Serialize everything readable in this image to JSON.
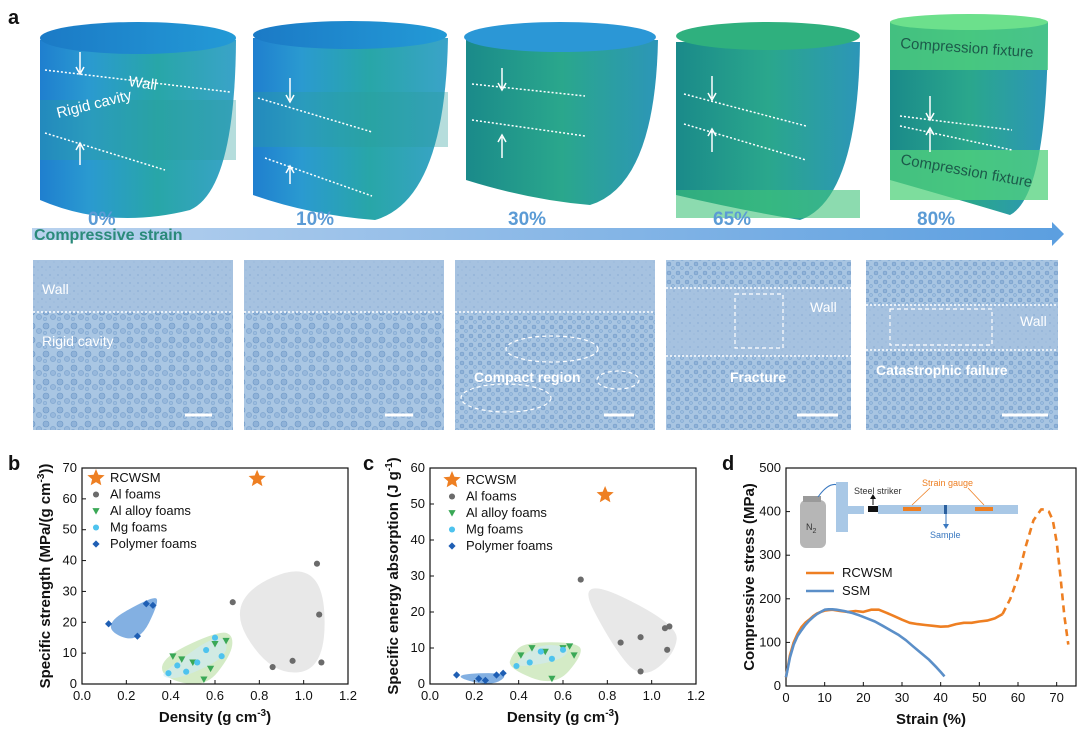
{
  "panel_a": {
    "label": "a",
    "strains": [
      "0%",
      "10%",
      "30%",
      "65%",
      "80%"
    ],
    "arrow_label": "Compressive strain",
    "cyl_wall": "Wall",
    "cyl_cavity": "Rigid cavity",
    "cyl_fixture_top": "Compression fixture",
    "cyl_fixture_bottom": "Compression fixture",
    "mic_wall": "Wall",
    "mic_cavity": "Rigid cavity",
    "mic_compact": "Compact region",
    "mic_fracture": "Fracture",
    "mic_wall_4": "Wall",
    "mic_catastrophic": "Catastrophic failure",
    "mic_wall_5": "Wall"
  },
  "chart_data": [
    {
      "panel": "b",
      "type": "scatter",
      "xlabel": "Density (g cm-3)",
      "ylabel": "Specific strength (MPa/(g cm-3))",
      "xlim": [
        0.0,
        1.2
      ],
      "ylim": [
        0,
        70
      ],
      "xticks": [
        "0.0",
        "0.2",
        "0.4",
        "0.6",
        "0.8",
        "1.0",
        "1.2"
      ],
      "yticks": [
        "0",
        "10",
        "20",
        "30",
        "40",
        "50",
        "60",
        "70"
      ],
      "legend": [
        "RCWSM",
        "Al foams",
        "Al alloy foams",
        "Mg foams",
        "Polymer foams"
      ],
      "series": [
        {
          "name": "RCWSM",
          "color": "#ee7f22",
          "marker": "star",
          "points": [
            [
              0.79,
              66.5
            ]
          ]
        },
        {
          "name": "Al foams",
          "color": "#6b6b6b",
          "marker": "circle",
          "points": [
            [
              0.68,
              26.5
            ],
            [
              0.86,
              5.5
            ],
            [
              0.95,
              7.5
            ],
            [
              1.06,
              39
            ],
            [
              1.07,
              22.5
            ],
            [
              1.08,
              7
            ]
          ]
        },
        {
          "name": "Al alloy foams",
          "color": "#3aa856",
          "marker": "triangle-down",
          "points": [
            [
              0.41,
              9
            ],
            [
              0.45,
              8
            ],
            [
              0.5,
              7
            ],
            [
              0.55,
              1.5
            ],
            [
              0.58,
              5
            ],
            [
              0.6,
              13
            ],
            [
              0.65,
              14
            ]
          ]
        },
        {
          "name": "Mg foams",
          "color": "#4ec3ee",
          "marker": "circle",
          "points": [
            [
              0.39,
              3.5
            ],
            [
              0.43,
              6
            ],
            [
              0.47,
              4
            ],
            [
              0.52,
              7
            ],
            [
              0.56,
              11
            ],
            [
              0.6,
              15
            ],
            [
              0.63,
              9
            ]
          ]
        },
        {
          "name": "Polymer foams",
          "color": "#1f5fb4",
          "marker": "diamond",
          "points": [
            [
              0.12,
              19.5
            ],
            [
              0.25,
              15.5
            ],
            [
              0.29,
              26
            ],
            [
              0.32,
              25.5
            ]
          ]
        }
      ]
    },
    {
      "panel": "c",
      "type": "scatter",
      "xlabel": "Density (g cm-3)",
      "ylabel": "Specific energy absorption (J g-1)",
      "xlim": [
        0.0,
        1.2
      ],
      "ylim": [
        0,
        60
      ],
      "xticks": [
        "0.0",
        "0.2",
        "0.4",
        "0.6",
        "0.8",
        "1.0",
        "1.2"
      ],
      "yticks": [
        "0",
        "10",
        "20",
        "30",
        "40",
        "50",
        "60"
      ],
      "legend": [
        "RCWSM",
        "Al foams",
        "Al alloy foams",
        "Mg foams",
        "Polymer foams"
      ],
      "series": [
        {
          "name": "RCWSM",
          "color": "#ee7f22",
          "marker": "star",
          "points": [
            [
              0.79,
              52.5
            ]
          ]
        },
        {
          "name": "Al foams",
          "color": "#6b6b6b",
          "marker": "circle",
          "points": [
            [
              0.68,
              29
            ],
            [
              0.86,
              11.5
            ],
            [
              0.95,
              13
            ],
            [
              0.95,
              3.5
            ],
            [
              1.06,
              15.5
            ],
            [
              1.08,
              16
            ],
            [
              1.07,
              9.5
            ]
          ]
        },
        {
          "name": "Al alloy foams",
          "color": "#3aa856",
          "marker": "triangle-down",
          "points": [
            [
              0.41,
              8
            ],
            [
              0.46,
              10
            ],
            [
              0.52,
              9
            ],
            [
              0.55,
              1.5
            ],
            [
              0.6,
              10
            ],
            [
              0.63,
              10.5
            ],
            [
              0.65,
              8
            ]
          ]
        },
        {
          "name": "Mg foams",
          "color": "#4ec3ee",
          "marker": "circle",
          "points": [
            [
              0.39,
              5
            ],
            [
              0.45,
              6
            ],
            [
              0.5,
              9
            ],
            [
              0.55,
              7
            ],
            [
              0.6,
              9.5
            ]
          ]
        },
        {
          "name": "Polymer foams",
          "color": "#1f5fb4",
          "marker": "diamond",
          "points": [
            [
              0.12,
              2.5
            ],
            [
              0.22,
              1.5
            ],
            [
              0.25,
              1
            ],
            [
              0.3,
              2.5
            ],
            [
              0.33,
              3
            ]
          ]
        }
      ]
    },
    {
      "panel": "d",
      "type": "line",
      "xlabel": "Strain (%)",
      "ylabel": "Compressive stress (MPa)",
      "xlim": [
        0,
        75
      ],
      "ylim": [
        0,
        500
      ],
      "xticks": [
        "0",
        "10",
        "20",
        "30",
        "40",
        "50",
        "60",
        "70"
      ],
      "yticks": [
        "0",
        "100",
        "200",
        "300",
        "400",
        "500"
      ],
      "legend": [
        "RCWSM",
        "SSM"
      ],
      "series": [
        {
          "name": "RCWSM",
          "color": "#ee7f22",
          "x": [
            0,
            1,
            2,
            3,
            4,
            5,
            6,
            7,
            8,
            9,
            10,
            11,
            12,
            14,
            16,
            18,
            20,
            22,
            24,
            26,
            28,
            30,
            32,
            34,
            36,
            38,
            40,
            42,
            44,
            46,
            48,
            50,
            52,
            54,
            56
          ],
          "y": [
            20,
            70,
            100,
            120,
            135,
            145,
            152,
            160,
            166,
            170,
            173,
            174,
            175,
            172,
            170,
            172,
            170,
            175,
            175,
            168,
            160,
            152,
            145,
            142,
            140,
            138,
            136,
            137,
            142,
            145,
            145,
            148,
            150,
            155,
            165
          ]
        },
        {
          "name": "RCWSM (dashed)",
          "color": "#ee7f22",
          "x": [
            56,
            58,
            60,
            62,
            64,
            66,
            67,
            68,
            69,
            70,
            71,
            72,
            73
          ],
          "y": [
            165,
            200,
            250,
            320,
            380,
            405,
            405,
            400,
            380,
            330,
            250,
            160,
            95
          ]
        },
        {
          "name": "SSM",
          "color": "#5b8fc8",
          "x": [
            0,
            1,
            2,
            3,
            4,
            5,
            6,
            7,
            8,
            9,
            10,
            11,
            12,
            13,
            15,
            17,
            19,
            21,
            23,
            25,
            27,
            29,
            31,
            33,
            35,
            37,
            39,
            40,
            41
          ],
          "y": [
            20,
            65,
            95,
            115,
            128,
            140,
            150,
            158,
            165,
            170,
            175,
            176,
            176,
            175,
            172,
            168,
            162,
            155,
            148,
            138,
            128,
            118,
            105,
            90,
            75,
            60,
            42,
            32,
            22
          ]
        }
      ],
      "inset": {
        "n2": "N",
        "n2_sub": "2",
        "steel_striker": "Steel striker",
        "strain_gauge": "Strain gauge",
        "sample": "Sample"
      }
    }
  ]
}
